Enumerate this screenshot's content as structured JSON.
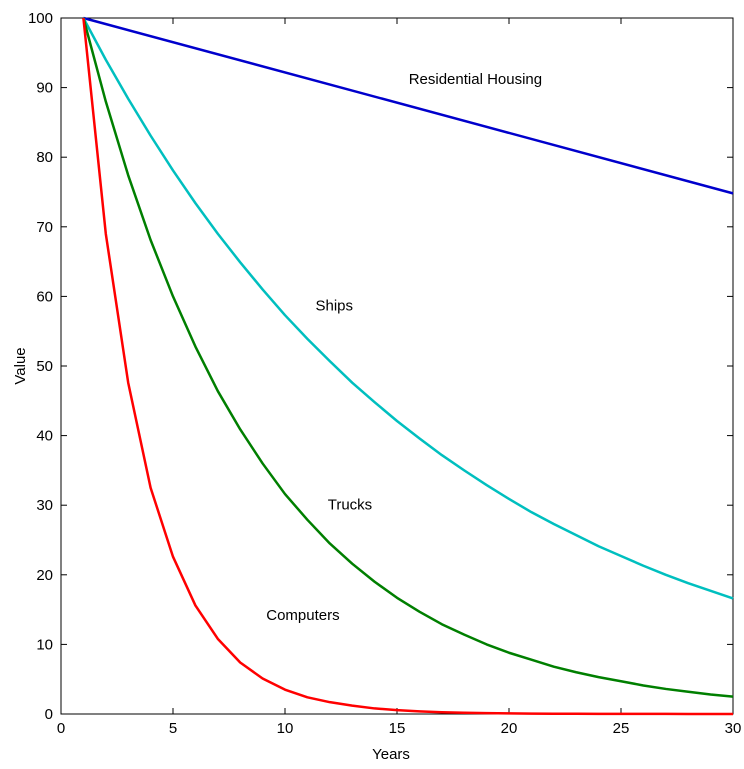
{
  "chart_data": {
    "type": "line",
    "title": "",
    "xlabel": "Years",
    "ylabel": "Value",
    "xlim": [
      0,
      30
    ],
    "ylim": [
      0,
      100
    ],
    "xticks": [
      0,
      5,
      10,
      15,
      20,
      25,
      30
    ],
    "yticks": [
      0,
      10,
      20,
      30,
      40,
      50,
      60,
      70,
      80,
      90,
      100
    ],
    "grid": false,
    "legend": "none",
    "series": [
      {
        "name": "Residential Housing",
        "color": "#0000cc",
        "x": [
          1,
          30
        ],
        "y": [
          100,
          74.8
        ]
      },
      {
        "name": "Ships",
        "color": "#00bfbf",
        "x": [
          1,
          2,
          3,
          4,
          5,
          6,
          7,
          8,
          9,
          10,
          11,
          12,
          13,
          14,
          15,
          16,
          17,
          18,
          19,
          20,
          21,
          22,
          23,
          24,
          25,
          26,
          27,
          28,
          29,
          30
        ],
        "y": [
          100,
          94,
          88.4,
          83.1,
          78.1,
          73.4,
          69,
          64.9,
          61,
          57.3,
          53.9,
          50.7,
          47.6,
          44.8,
          42.1,
          39.6,
          37.2,
          35,
          32.9,
          30.9,
          29,
          27.3,
          25.7,
          24.1,
          22.7,
          21.3,
          20,
          18.8,
          17.7,
          16.6
        ]
      },
      {
        "name": "Trucks",
        "color": "#007f00",
        "x": [
          1,
          2,
          3,
          4,
          5,
          6,
          7,
          8,
          9,
          10,
          11,
          12,
          13,
          14,
          15,
          16,
          17,
          18,
          19,
          20,
          21,
          22,
          23,
          24,
          25,
          26,
          27,
          28,
          29,
          30
        ],
        "y": [
          100,
          88,
          77.4,
          68.1,
          60,
          52.8,
          46.4,
          40.9,
          36,
          31.6,
          27.9,
          24.5,
          21.6,
          19,
          16.7,
          14.7,
          12.9,
          11.4,
          10,
          8.8,
          7.8,
          6.8,
          6,
          5.3,
          4.7,
          4.1,
          3.6,
          3.2,
          2.8,
          2.5
        ]
      },
      {
        "name": "Computers",
        "color": "#ff0000",
        "x": [
          1,
          2,
          3,
          4,
          5,
          6,
          7,
          8,
          9,
          10,
          11,
          12,
          13,
          14,
          15,
          16,
          17,
          18,
          19,
          20,
          21,
          22,
          23,
          24,
          25,
          26,
          27,
          28,
          29,
          30
        ],
        "y": [
          100,
          69,
          47.6,
          32.5,
          22.6,
          15.6,
          10.8,
          7.4,
          5.1,
          3.5,
          2.4,
          1.7,
          1.2,
          0.8,
          0.55,
          0.38,
          0.26,
          0.18,
          0.12,
          0.09,
          0.06,
          0.04,
          0.03,
          0.02,
          0.01,
          0.01,
          0.01,
          0,
          0,
          0
        ]
      }
    ],
    "annotations": [
      {
        "text": "Residential Housing",
        "x": 18.5,
        "y": 90.5
      },
      {
        "text": "Ships",
        "x": 12.2,
        "y": 58
      },
      {
        "text": "Trucks",
        "x": 12.9,
        "y": 29.4
      },
      {
        "text": "Computers",
        "x": 10.8,
        "y": 13.5
      }
    ]
  }
}
